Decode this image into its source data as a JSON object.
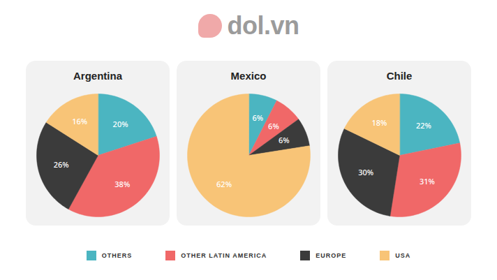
{
  "logo": "dol.vn",
  "chart_data": [
    {
      "type": "pie",
      "title": "Argentina",
      "categories": [
        "OTHERS",
        "OTHER LATIN AMERICA",
        "EUROPE",
        "USA"
      ],
      "values": [
        20,
        38,
        26,
        16
      ],
      "value_labels": [
        "20%",
        "38%",
        "26%",
        "16%"
      ],
      "colors": [
        "#4bb5c1",
        "#f06868",
        "#3b3b3b",
        "#f8c477"
      ],
      "data_labels": true,
      "legend": "bottom"
    },
    {
      "type": "pie",
      "title": "Mexico",
      "categories": [
        "OTHERS",
        "OTHER LATIN AMERICA",
        "EUROPE",
        "USA"
      ],
      "values": [
        6,
        6,
        6,
        62
      ],
      "value_labels": [
        "6%",
        "6%",
        "6%",
        "62%"
      ],
      "colors": [
        "#4bb5c1",
        "#f06868",
        "#3b3b3b",
        "#f8c477"
      ],
      "data_labels": true,
      "legend": "bottom"
    },
    {
      "type": "pie",
      "title": "Chile",
      "categories": [
        "OTHERS",
        "OTHER LATIN AMERICA",
        "EUROPE",
        "USA"
      ],
      "values": [
        22,
        31,
        30,
        18
      ],
      "value_labels": [
        "22%",
        "31%",
        "30%",
        "18%"
      ],
      "colors": [
        "#4bb5c1",
        "#f06868",
        "#3b3b3b",
        "#f8c477"
      ],
      "data_labels": true,
      "legend": "bottom"
    }
  ]
}
